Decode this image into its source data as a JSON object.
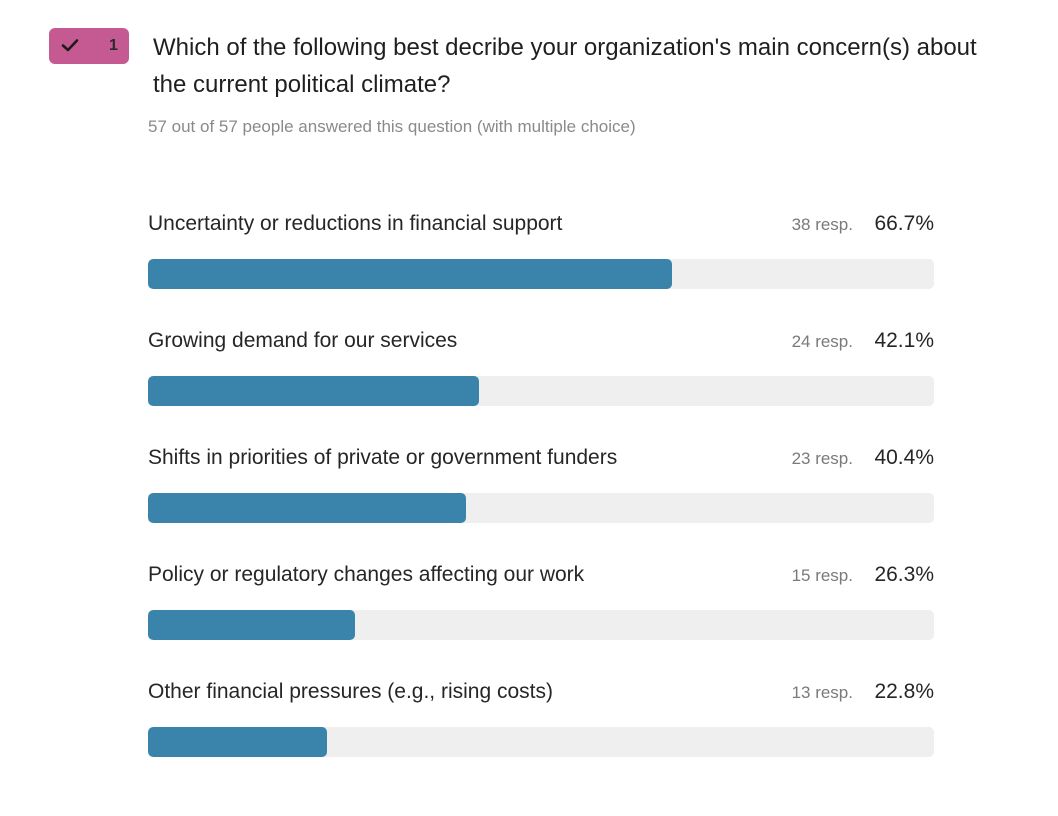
{
  "question": {
    "number": "1",
    "badge_color": "#c55a92",
    "badge_icon": "check-icon",
    "title": "Which of the following best decribe your organization's main concern(s) about the current political climate?",
    "subtitle": "57 out of 57 people answered this question (with multiple choice)"
  },
  "colors": {
    "bar_fill": "#3a83ab",
    "bar_track": "#efefef"
  },
  "chart_data": {
    "type": "bar",
    "orientation": "horizontal",
    "categories": [
      "Uncertainty or reductions in financial support",
      "Growing demand for our services",
      "Shifts in priorities of private or government funders",
      "Policy or regulatory changes affecting our work",
      "Other financial pressures (e.g., rising costs)"
    ],
    "values": [
      66.7,
      42.1,
      40.4,
      26.3,
      22.8
    ],
    "responses": [
      38,
      24,
      23,
      15,
      13
    ],
    "rows": [
      {
        "label": "Uncertainty or reductions in financial support",
        "count": "38 resp.",
        "pct": "66.7%"
      },
      {
        "label": "Growing demand for our services",
        "count": "24 resp.",
        "pct": "42.1%"
      },
      {
        "label": "Shifts in priorities of private or government funders",
        "count": "23 resp.",
        "pct": "40.4%"
      },
      {
        "label": "Policy or regulatory changes affecting our work",
        "count": "15 resp.",
        "pct": "26.3%"
      },
      {
        "label": "Other financial pressures (e.g., rising costs)",
        "count": "13 resp.",
        "pct": "22.8%"
      }
    ],
    "xlim": [
      0,
      100
    ]
  }
}
